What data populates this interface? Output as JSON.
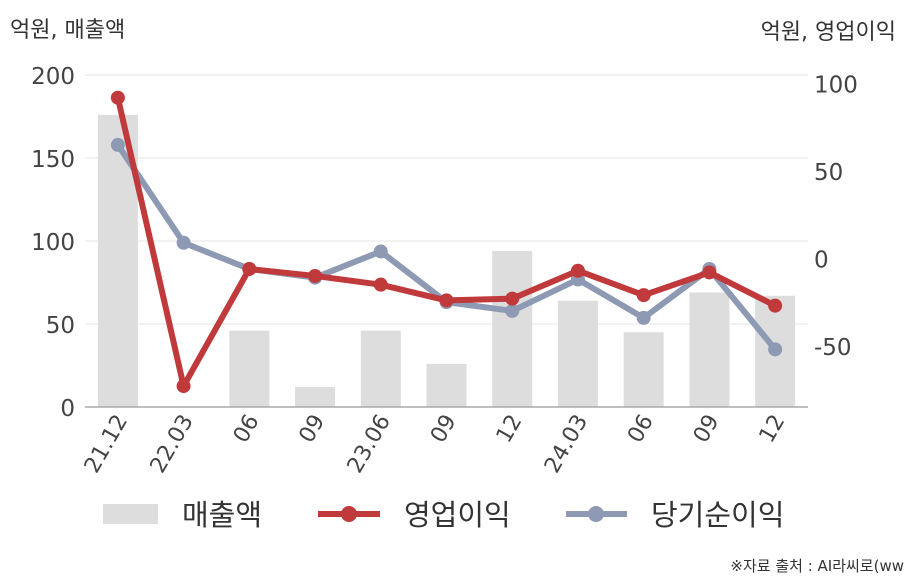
{
  "chart_data": {
    "type": "bar",
    "categories": [
      "21.12",
      "22.03",
      "06",
      "09",
      "23.06",
      "09",
      "12",
      "24.03",
      "06",
      "09",
      "12"
    ],
    "series": [
      {
        "name": "매출액",
        "type": "bar",
        "axis": "left",
        "values": [
          176,
          0,
          46,
          12,
          46,
          26,
          94,
          64,
          45,
          69,
          67
        ]
      },
      {
        "name": "영업이익",
        "type": "line",
        "axis": "right",
        "values": [
          92,
          -73,
          -6,
          -10,
          -15,
          -24,
          -23,
          -7,
          -21,
          -8,
          -27
        ]
      },
      {
        "name": "당기순이익",
        "type": "line",
        "axis": "right",
        "values": [
          65,
          9,
          -6,
          -11,
          4,
          -25,
          -30,
          -12,
          -34,
          -6,
          -52
        ]
      }
    ],
    "ylabel_left": "억원, 매출액",
    "ylabel_right": "억원, 영업이익",
    "ylim_left": [
      0,
      200
    ],
    "ylim_right": [
      -85,
      105
    ],
    "yticks_left": [
      "0",
      "50",
      "100",
      "150",
      "200"
    ],
    "yticks_right": [
      "-50",
      "0",
      "50",
      "100"
    ],
    "grid": true,
    "legend": "bottom",
    "colors": {
      "bar": "#dddddd",
      "operating": "#c0393b",
      "net": "#8e9ab3",
      "grid": "#e6e6e6",
      "axis": "#aaaaaa"
    }
  },
  "source_note": "※자료 출처 : AI라씨로(ww"
}
